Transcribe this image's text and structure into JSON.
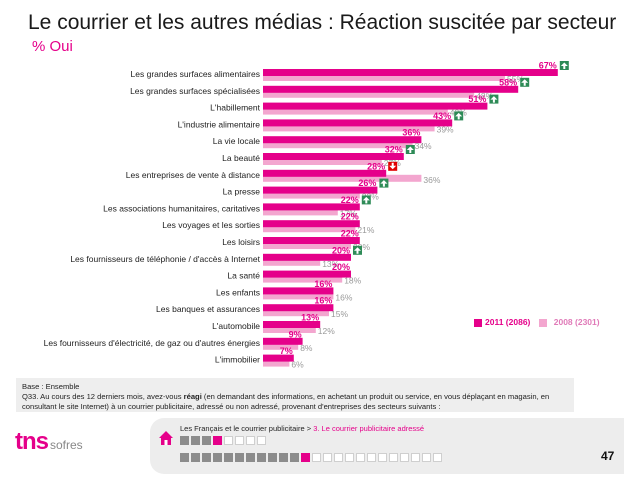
{
  "title": "Le courrier et les autres médias : Réaction suscitée par secteur",
  "subtitle": "% Oui",
  "legend": {
    "current": "2011 (2086)",
    "previous": "2008 (2301)"
  },
  "colors": {
    "current": "#e5008a",
    "previous": "#f3a6cf",
    "up": "#2e8b57",
    "down": "#e00000"
  },
  "chart_data": {
    "type": "bar",
    "orientation": "horizontal",
    "categories": [
      "Les grandes surfaces alimentaires",
      "Les grandes surfaces spécialisées",
      "L'habillement",
      "L'industrie alimentaire",
      "La vie locale",
      "La beauté",
      "Les entreprises de vente à distance",
      "La presse",
      "Les associations humanitaires, caritatives",
      "Les voyages et les sorties",
      "Les loisirs",
      "Les fournisseurs de téléphonie / d'accès à Internet",
      "La santé",
      "Les enfants",
      "Les banques et assurances",
      "L'automobile",
      "Les fournisseurs d'électricité, de gaz ou d'autres énergies",
      "L'immobilier"
    ],
    "series": [
      {
        "name": "2011 (2086)",
        "values": [
          67,
          58,
          51,
          43,
          36,
          32,
          28,
          26,
          22,
          22,
          22,
          20,
          20,
          16,
          16,
          13,
          9,
          7
        ]
      },
      {
        "name": "2008 (2301)",
        "values": [
          55,
          48,
          42,
          39,
          34,
          27,
          36,
          22,
          17,
          21,
          20,
          13,
          18,
          16,
          15,
          12,
          8,
          6
        ]
      }
    ],
    "trend": [
      "up",
      "up",
      "up",
      "up",
      "",
      "up",
      "down",
      "up",
      "up",
      "",
      "",
      "up",
      "",
      "",
      "",
      "",
      "",
      ""
    ],
    "unit": "%"
  },
  "footnote": {
    "base": "Base : Ensemble",
    "question_start": "Q33. Au cours des 12 derniers mois, avez-vous ",
    "question_bold": "réagi",
    "question_end": " (en demandant des informations, en achetant un produit ou service, en vous déplaçant en magasin, en consultant le site Internet) à un courrier publicitaire, adressé ou non adressé, provenant d'entreprises des secteurs suivants :"
  },
  "logo": {
    "brand": "tns",
    "suffix": "sofres"
  },
  "nav": {
    "section": "Les Français et le courrier publicitaire",
    "separator": " > ",
    "current": "3. Le courrier publicitaire adressé",
    "row1": [
      "filled",
      "filled",
      "filled",
      "active",
      "empty",
      "empty",
      "empty",
      "empty"
    ],
    "row2": [
      "filled",
      "filled",
      "filled",
      "filled",
      "filled",
      "filled",
      "filled",
      "filled",
      "filled",
      "filled",
      "filled",
      "active",
      "empty",
      "empty",
      "empty",
      "empty",
      "empty",
      "empty",
      "empty",
      "empty",
      "empty",
      "empty",
      "empty",
      "empty"
    ]
  },
  "page_number": "47"
}
